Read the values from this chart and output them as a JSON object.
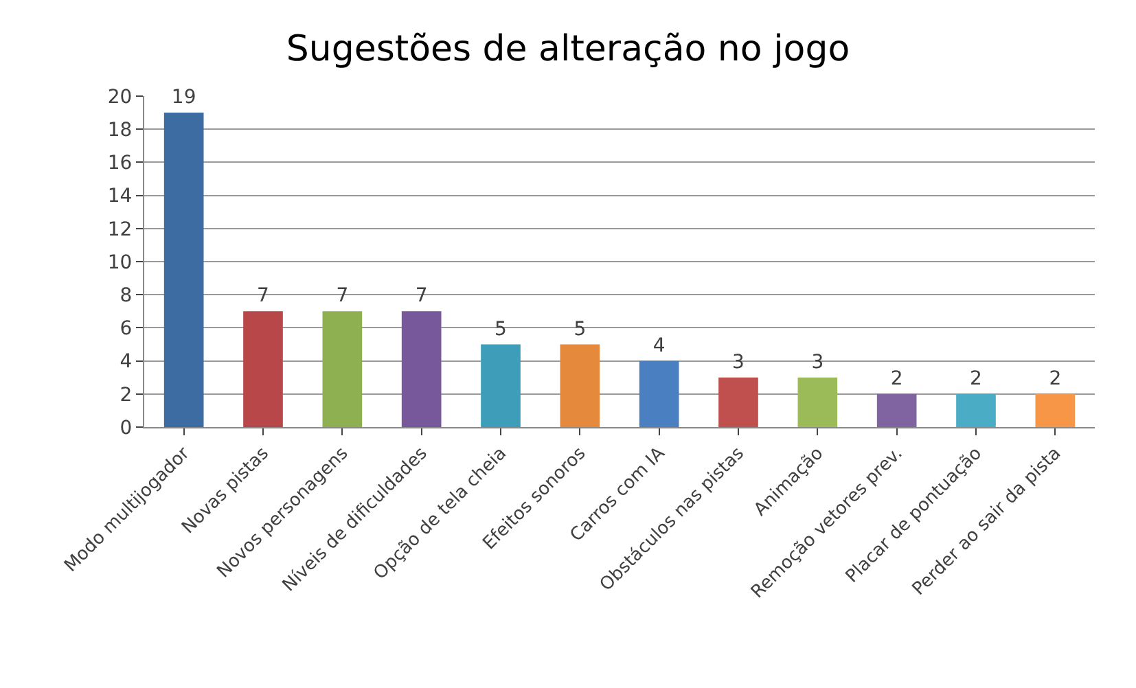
{
  "chart_data": {
    "type": "bar",
    "title": "Sugestões de alteração no jogo",
    "categories": [
      "Modo multijogador",
      "Novas pistas",
      "Novos personagens",
      "Níveis de dificuldades",
      "Opção de tela cheia",
      "Efeitos sonoros",
      "Carros com IA",
      "Obstáculos nas pistas",
      "Animação",
      "Remoção vetores prev.",
      "Placar de pontuação",
      "Perder ao sair da pista"
    ],
    "values": [
      19,
      7,
      7,
      7,
      5,
      5,
      4,
      3,
      3,
      2,
      2,
      2
    ],
    "colors": [
      "#3d6ca3",
      "#b8474a",
      "#8fb050",
      "#77599b",
      "#3e9db8",
      "#e58a3c",
      "#4a7fc1",
      "#c0504d",
      "#9bbb59",
      "#8064a2",
      "#4bacc6",
      "#f79646"
    ],
    "ylim": [
      0,
      20
    ],
    "yticks": [
      0,
      2,
      4,
      6,
      8,
      10,
      12,
      14,
      16,
      18,
      20
    ],
    "grid": "y",
    "data_labels": true
  }
}
